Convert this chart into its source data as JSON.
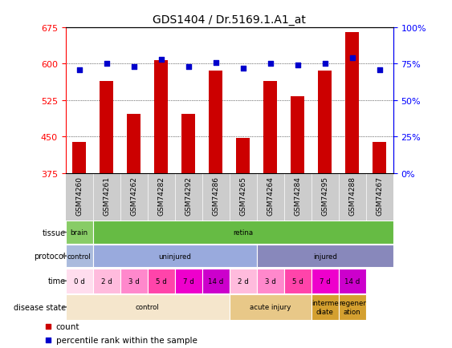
{
  "title": "GDS1404 / Dr.5169.1.A1_at",
  "samples": [
    "GSM74260",
    "GSM74261",
    "GSM74262",
    "GSM74282",
    "GSM74292",
    "GSM74286",
    "GSM74265",
    "GSM74264",
    "GSM74284",
    "GSM74295",
    "GSM74288",
    "GSM74267"
  ],
  "bar_values": [
    440,
    565,
    497,
    607,
    497,
    585,
    447,
    565,
    533,
    585,
    665,
    440
  ],
  "percentile_values": [
    71,
    75,
    73,
    78,
    73,
    76,
    72,
    75,
    74,
    75,
    79,
    71
  ],
  "ylim_left": [
    375,
    675
  ],
  "ylim_right": [
    0,
    100
  ],
  "yticks_left": [
    375,
    450,
    525,
    600,
    675
  ],
  "yticks_right": [
    0,
    25,
    50,
    75,
    100
  ],
  "bar_color": "#cc0000",
  "dot_color": "#0000cc",
  "bar_width": 0.5,
  "tissue_row": {
    "label": "tissue",
    "segments": [
      {
        "text": "brain",
        "span": [
          0,
          1
        ],
        "color": "#88cc66"
      },
      {
        "text": "retina",
        "span": [
          1,
          12
        ],
        "color": "#66bb44"
      }
    ]
  },
  "protocol_row": {
    "label": "protocol",
    "segments": [
      {
        "text": "control",
        "span": [
          0,
          1
        ],
        "color": "#aabbdd"
      },
      {
        "text": "uninjured",
        "span": [
          1,
          7
        ],
        "color": "#99aadd"
      },
      {
        "text": "injured",
        "span": [
          7,
          12
        ],
        "color": "#8888bb"
      }
    ]
  },
  "time_row": {
    "label": "time",
    "segments": [
      {
        "text": "0 d",
        "span": [
          0,
          1
        ],
        "color": "#ffddee"
      },
      {
        "text": "2 d",
        "span": [
          1,
          2
        ],
        "color": "#ffbbdd"
      },
      {
        "text": "3 d",
        "span": [
          2,
          3
        ],
        "color": "#ff88cc"
      },
      {
        "text": "5 d",
        "span": [
          3,
          4
        ],
        "color": "#ff44aa"
      },
      {
        "text": "7 d",
        "span": [
          4,
          5
        ],
        "color": "#ee00cc"
      },
      {
        "text": "14 d",
        "span": [
          5,
          6
        ],
        "color": "#cc00cc"
      },
      {
        "text": "2 d",
        "span": [
          6,
          7
        ],
        "color": "#ffbbdd"
      },
      {
        "text": "3 d",
        "span": [
          7,
          8
        ],
        "color": "#ff88cc"
      },
      {
        "text": "5 d",
        "span": [
          8,
          9
        ],
        "color": "#ff44aa"
      },
      {
        "text": "7 d",
        "span": [
          9,
          10
        ],
        "color": "#ee00cc"
      },
      {
        "text": "14 d",
        "span": [
          10,
          11
        ],
        "color": "#cc00cc"
      }
    ]
  },
  "disease_row": {
    "label": "disease state",
    "segments": [
      {
        "text": "control",
        "span": [
          0,
          6
        ],
        "color": "#f5e6cc"
      },
      {
        "text": "acute injury",
        "span": [
          6,
          9
        ],
        "color": "#e8c888"
      },
      {
        "text": "interme\ndiate",
        "span": [
          9,
          10
        ],
        "color": "#d4a030"
      },
      {
        "text": "regener\nation",
        "span": [
          10,
          11
        ],
        "color": "#d4a030"
      }
    ]
  },
  "xticklabel_bg": "#cccccc",
  "background_color": "#ffffff"
}
